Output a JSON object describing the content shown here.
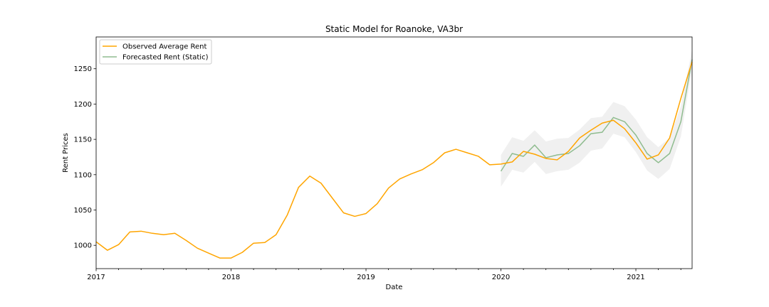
{
  "chart_data": {
    "type": "line",
    "title": "Static Model for Roanoke, VA3br",
    "xlabel": "Date",
    "ylabel": "Rent Prices",
    "xlim": [
      "2017-01",
      "2021-06"
    ],
    "ylim": [
      967,
      1295
    ],
    "x_ticks": [
      "2017",
      "2018",
      "2019",
      "2020",
      "2021"
    ],
    "y_ticks": [
      1000,
      1050,
      1100,
      1150,
      1200,
      1250
    ],
    "grid": false,
    "legend_position": "upper-left",
    "series": [
      {
        "name": "Observed Average Rent",
        "color": "#FFA500",
        "x": [
          "2017-01",
          "2017-02",
          "2017-03",
          "2017-04",
          "2017-05",
          "2017-06",
          "2017-07",
          "2017-08",
          "2017-09",
          "2017-10",
          "2017-11",
          "2017-12",
          "2018-01",
          "2018-02",
          "2018-03",
          "2018-04",
          "2018-05",
          "2018-06",
          "2018-07",
          "2018-08",
          "2018-09",
          "2018-10",
          "2018-11",
          "2018-12",
          "2019-01",
          "2019-02",
          "2019-03",
          "2019-04",
          "2019-05",
          "2019-06",
          "2019-07",
          "2019-08",
          "2019-09",
          "2019-10",
          "2019-11",
          "2019-12",
          "2020-01",
          "2020-02",
          "2020-03",
          "2020-04",
          "2020-05",
          "2020-06",
          "2020-07",
          "2020-08",
          "2020-09",
          "2020-10",
          "2020-11",
          "2020-12",
          "2021-01",
          "2021-02",
          "2021-03",
          "2021-04",
          "2021-05",
          "2021-06"
        ],
        "values": [
          1005,
          993,
          1001,
          1019,
          1020,
          1017,
          1015,
          1017,
          1007,
          996,
          989,
          982,
          982,
          990,
          1003,
          1004,
          1015,
          1043,
          1082,
          1098,
          1088,
          1067,
          1046,
          1041,
          1045,
          1059,
          1081,
          1094,
          1101,
          1107,
          1117,
          1131,
          1136,
          1131,
          1126,
          1114,
          1115,
          1118,
          1133,
          1129,
          1123,
          1121,
          1133,
          1152,
          1163,
          1173,
          1177,
          1165,
          1145,
          1122,
          1128,
          1152,
          1208,
          1260
        ]
      },
      {
        "name": "Forecasted Rent (Static)",
        "color": "#8FBC8F",
        "x": [
          "2020-01",
          "2020-02",
          "2020-03",
          "2020-04",
          "2020-05",
          "2020-06",
          "2020-07",
          "2020-08",
          "2020-09",
          "2020-10",
          "2020-11",
          "2020-12",
          "2021-01",
          "2021-02",
          "2021-03",
          "2021-04",
          "2021-05",
          "2021-06"
        ],
        "values": [
          1105,
          1130,
          1126,
          1142,
          1124,
          1128,
          1130,
          1141,
          1158,
          1160,
          1181,
          1175,
          1156,
          1130,
          1117,
          1130,
          1175,
          1263
        ],
        "lower": [
          1083,
          1107,
          1103,
          1118,
          1101,
          1105,
          1107,
          1117,
          1134,
          1137,
          1158,
          1153,
          1132,
          1106,
          1094,
          1108,
          1154,
          1250
        ],
        "upper": [
          1128,
          1153,
          1148,
          1163,
          1147,
          1151,
          1152,
          1164,
          1180,
          1182,
          1203,
          1197,
          1178,
          1153,
          1139,
          1152,
          1197,
          1277
        ]
      }
    ]
  }
}
